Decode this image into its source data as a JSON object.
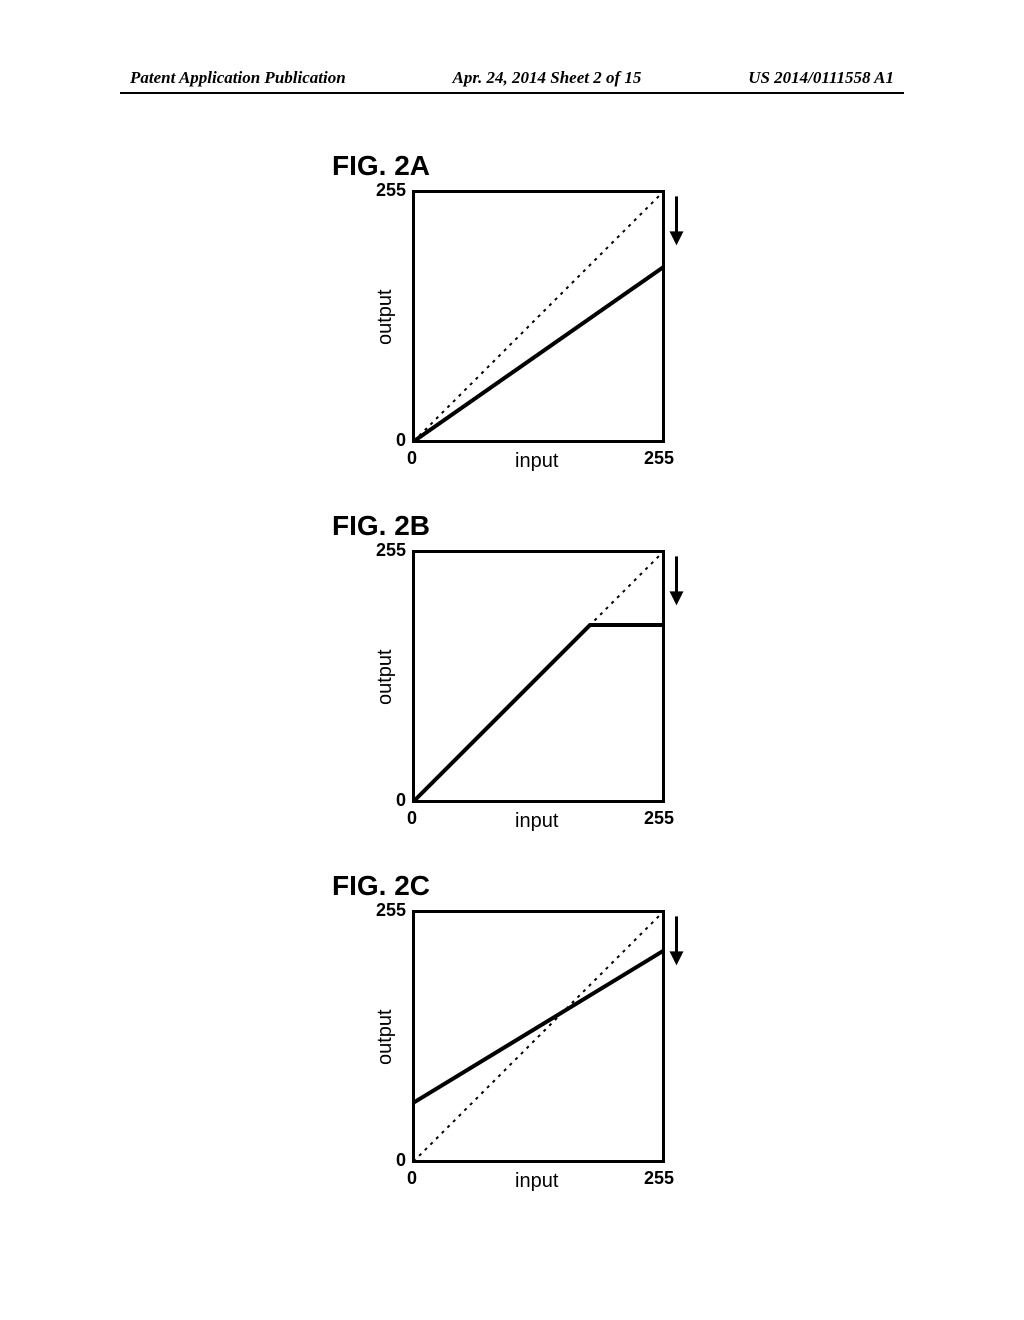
{
  "header": {
    "left": "Patent Application Publication",
    "center": "Apr. 24, 2014  Sheet 2 of 15",
    "right": "US 2014/0111558 A1"
  },
  "layout": {
    "chart_size": 250,
    "border_width": 3,
    "colors": {
      "background": "#ffffff",
      "ink": "#000000",
      "dotted": "#000000",
      "solid_line": "#000000"
    },
    "font": {
      "title_size": 28,
      "label_size": 20,
      "tick_size": 18
    }
  },
  "figures": [
    {
      "id": "2A",
      "title": "FIG. 2A",
      "xlabel": "input",
      "ylabel": "output",
      "xlim": [
        0,
        255
      ],
      "ylim": [
        0,
        255
      ],
      "xticks": [
        {
          "v": 0,
          "label": "0"
        },
        {
          "v": 255,
          "label": "255"
        }
      ],
      "yticks": [
        {
          "v": 0,
          "label": "0"
        },
        {
          "v": 255,
          "label": "255"
        }
      ],
      "reference_line": {
        "x": [
          0,
          255
        ],
        "y": [
          0,
          255
        ],
        "style": "dotted",
        "width": 2
      },
      "curve": {
        "x": [
          0,
          255
        ],
        "y": [
          0,
          178
        ],
        "style": "solid",
        "width": 4
      },
      "arrow": {
        "x": 268,
        "y_from": 250,
        "y_to": 200
      }
    },
    {
      "id": "2B",
      "title": "FIG. 2B",
      "xlabel": "input",
      "ylabel": "output",
      "xlim": [
        0,
        255
      ],
      "ylim": [
        0,
        255
      ],
      "xticks": [
        {
          "v": 0,
          "label": "0"
        },
        {
          "v": 255,
          "label": "255"
        }
      ],
      "yticks": [
        {
          "v": 0,
          "label": "0"
        },
        {
          "v": 255,
          "label": "255"
        }
      ],
      "reference_line": {
        "x": [
          0,
          255
        ],
        "y": [
          0,
          255
        ],
        "style": "dotted",
        "width": 2
      },
      "curve": {
        "x": [
          0,
          180,
          255
        ],
        "y": [
          0,
          180,
          180
        ],
        "style": "solid",
        "width": 4
      },
      "arrow": {
        "x": 268,
        "y_from": 250,
        "y_to": 200
      }
    },
    {
      "id": "2C",
      "title": "FIG. 2C",
      "xlabel": "input",
      "ylabel": "output",
      "xlim": [
        0,
        255
      ],
      "ylim": [
        0,
        255
      ],
      "xticks": [
        {
          "v": 0,
          "label": "0"
        },
        {
          "v": 255,
          "label": "255"
        }
      ],
      "yticks": [
        {
          "v": 0,
          "label": "0"
        },
        {
          "v": 255,
          "label": "255"
        }
      ],
      "reference_line": {
        "x": [
          0,
          255
        ],
        "y": [
          0,
          255
        ],
        "style": "dotted",
        "width": 2
      },
      "curve": {
        "x": [
          0,
          255
        ],
        "y": [
          60,
          215
        ],
        "style": "solid",
        "width": 4
      },
      "arrow": {
        "x": 268,
        "y_from": 250,
        "y_to": 200
      }
    }
  ]
}
